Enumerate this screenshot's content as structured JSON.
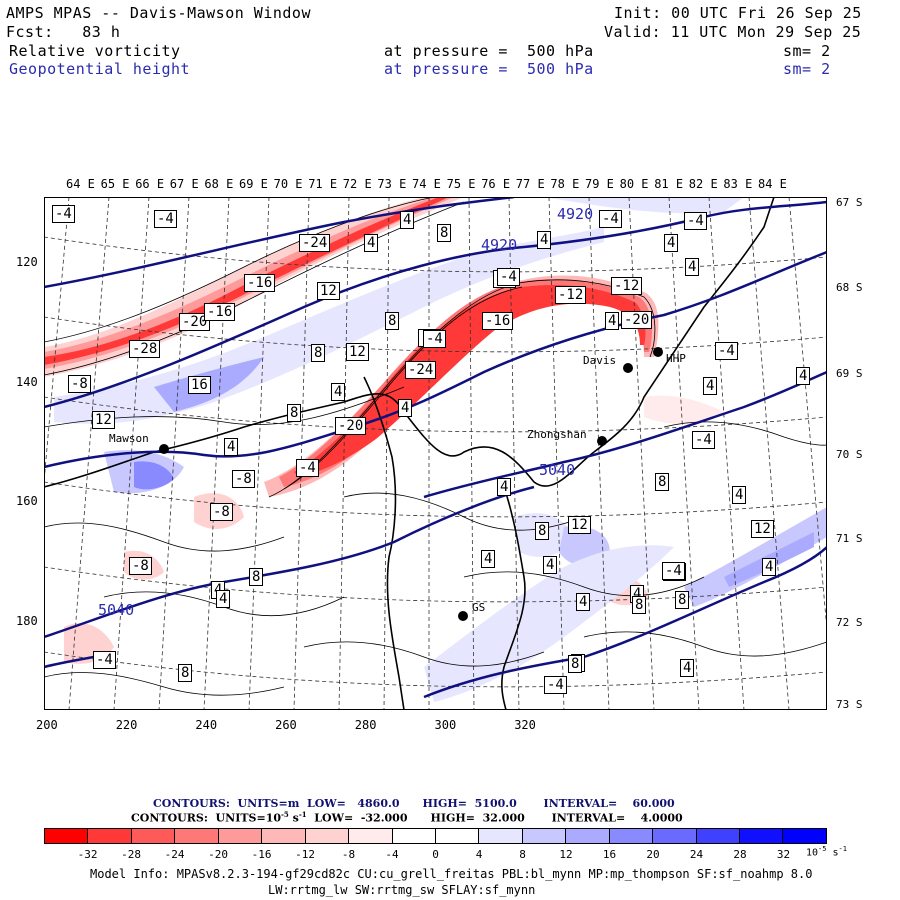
{
  "header": {
    "title": "AMPS MPAS -- Davis-Mawson Window",
    "init": "Init: 00 UTC Fri 26 Sep 25",
    "fcst": "Fcst:   83 h",
    "valid": "Valid: 11 UTC Mon 29 Sep 25",
    "field1_name": "Relative vorticity",
    "field1_level": "at pressure =  500 hPa",
    "field1_sm": "sm= 2",
    "field2_name": "Geopotential height",
    "field2_level": "at pressure =  500 hPa",
    "field2_sm": "sm= 2"
  },
  "lon_labels": [
    "64 E",
    "65 E",
    "66 E",
    "67 E",
    "68 E",
    "69 E",
    "70 E",
    "71 E",
    "72 E",
    "73 E",
    "74 E",
    "75 E",
    "76 E",
    "77 E",
    "78 E",
    "79 E",
    "80 E",
    "81 E",
    "82 E",
    "83 E",
    "84 E"
  ],
  "lat_labels": [
    "67 S",
    "68 S",
    "69 S",
    "70 S",
    "71 S",
    "72 S",
    "73 S"
  ],
  "y_ticks": [
    "120",
    "140",
    "160",
    "180"
  ],
  "x_ticks": [
    "200",
    "220",
    "240",
    "260",
    "280",
    "300",
    "320"
  ],
  "stations": [
    {
      "name": "Mawson"
    },
    {
      "name": "Davis"
    },
    {
      "name": "Zhongshan"
    },
    {
      "name": "HHP"
    },
    {
      "name": "GS"
    }
  ],
  "height_labels": [
    "4920",
    "4920",
    "5040",
    "5040"
  ],
  "vort_labels": [
    "-4",
    "-4",
    "4",
    "8",
    "4",
    "-4",
    "4",
    "4",
    "-24",
    "-4",
    "-16",
    "12",
    "-4",
    "4",
    "-20",
    "-12",
    "-12",
    "-28",
    "8",
    "-16",
    "-8",
    "16",
    "8",
    "12",
    "-8",
    "-24",
    "4",
    "12",
    "4",
    "8",
    "-20",
    "4",
    "-4",
    "-8",
    "12",
    "4",
    "-8",
    "8",
    "4",
    "12",
    "-8",
    "8",
    "4",
    "4",
    "-4",
    "4",
    "4",
    "8",
    "8",
    "4",
    "-4",
    "4",
    "4",
    "8",
    "-4",
    "4",
    "-20",
    "-16",
    "-4",
    "4",
    "-4",
    "4",
    "8",
    "-4",
    "-4",
    "4",
    "8",
    "8",
    "-4"
  ],
  "legend": {
    "line1_contours": "CONTOURS:  UNITS=m  LOW=   4860.0      HIGH=  5100.0       INTERVAL=    60.000",
    "line2_contours": "CONTOURS:  UNITS=10",
    "line2_exp": "-5",
    "line2_unit": " s",
    "line2_exp2": "-1",
    "line2_rest": "  LOW=  -32.000      HIGH=  32.000       INTERVAL=    4.0000",
    "colorbar_ticks": [
      "-32",
      "-28",
      "-24",
      "-20",
      "-16",
      "-12",
      "-8",
      "-4",
      "0",
      "4",
      "8",
      "12",
      "16",
      "20",
      "24",
      "28",
      "32"
    ],
    "colorbar_unit": "10",
    "colorbar_unit_exp": "-5",
    "colorbar_unit_s": " s",
    "colorbar_unit_exp2": "-1",
    "colors": [
      "#ff0000",
      "#ff3838",
      "#ff5a5a",
      "#ff7878",
      "#ff9a9a",
      "#ffb8b8",
      "#ffd2d2",
      "#ffebeb",
      "#ffffff",
      "#ffffff",
      "#e6e6ff",
      "#c8c8ff",
      "#aaaaff",
      "#8a8aff",
      "#6a6aff",
      "#4040ff",
      "#1010ff",
      "#0000ff"
    ]
  },
  "footer": {
    "line1": "Model Info: MPASv8.2.3-194-gf29cd82c CU:cu_grell_freitas PBL:bl_mynn MP:mp_thompson SF:sf_noahmp 8.0",
    "line2": "LW:rrtmg_lw SW:rrtmg_sw SFLAY:sf_mynn"
  }
}
